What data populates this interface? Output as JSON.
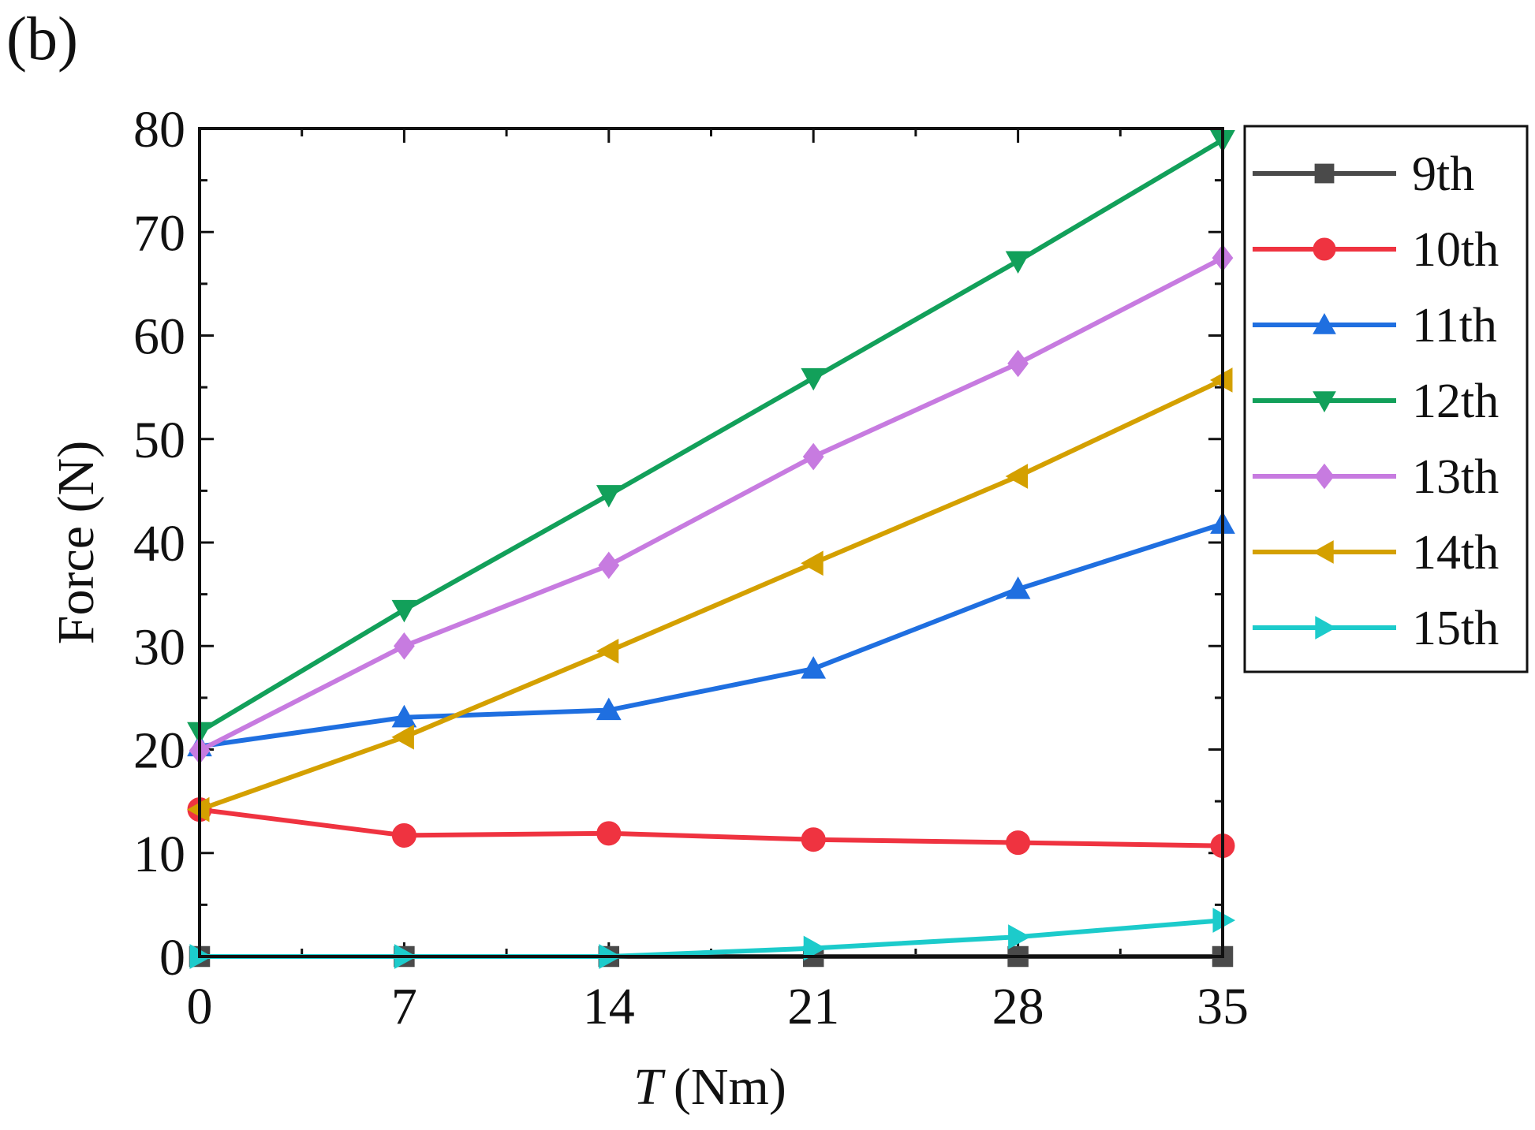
{
  "panel_label": "(b)",
  "chart_data": {
    "type": "line",
    "title": "",
    "xlabel_italic": "T",
    "xlabel_unit": "(Nm)",
    "ylabel": "Force (N)",
    "x": [
      0,
      7,
      14,
      21,
      28,
      35
    ],
    "x_ticks": [
      0,
      7,
      14,
      21,
      28,
      35
    ],
    "xlim": [
      0,
      35
    ],
    "y_ticks": [
      0,
      10,
      20,
      30,
      40,
      50,
      60,
      70,
      80
    ],
    "ylim": [
      0,
      80
    ],
    "grid": false,
    "legend_position": "outside-right-top",
    "series": [
      {
        "name": "9th",
        "color": "#4a4a4a",
        "marker": "square",
        "values": [
          0,
          0,
          0,
          0,
          0,
          0
        ]
      },
      {
        "name": "10th",
        "color": "#ef3340",
        "marker": "circle",
        "values": [
          14.2,
          11.7,
          11.9,
          11.3,
          11.0,
          10.7
        ]
      },
      {
        "name": "11th",
        "color": "#1f6fe0",
        "marker": "triangle-up",
        "values": [
          20.3,
          23.1,
          23.8,
          27.8,
          35.5,
          41.8
        ]
      },
      {
        "name": "12th",
        "color": "#12a05a",
        "marker": "triangle-down",
        "values": [
          21.7,
          33.5,
          44.6,
          55.9,
          67.2,
          78.9
        ]
      },
      {
        "name": "13th",
        "color": "#c77be0",
        "marker": "diamond",
        "values": [
          19.9,
          30.0,
          37.8,
          48.3,
          57.3,
          67.5
        ]
      },
      {
        "name": "14th",
        "color": "#d4a000",
        "marker": "triangle-left",
        "values": [
          14.2,
          21.2,
          29.5,
          38.0,
          46.4,
          55.7
        ]
      },
      {
        "name": "15th",
        "color": "#1ccbcb",
        "marker": "triangle-right",
        "values": [
          0,
          0,
          0,
          0.8,
          1.9,
          3.5
        ]
      }
    ]
  }
}
